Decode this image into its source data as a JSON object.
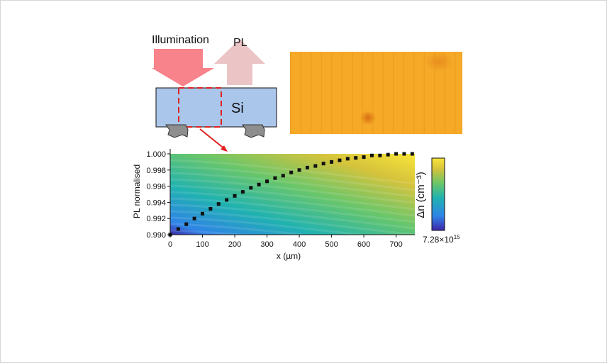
{
  "labels": {
    "illumination": "Illumination",
    "pl": "PL",
    "si": "Si"
  },
  "colors": {
    "illumination_arrow": "#f8838a",
    "pl_arrow": "#ebc4c6",
    "silicon": "#aac6ea",
    "dashed_box": "#e02020",
    "contact": "#8e8e8e",
    "pl_image_base": "#f5a927",
    "data_points": "#111111"
  },
  "chart_data": {
    "type": "scatter",
    "xlabel": "x (µm)",
    "ylabel": "PL normalised",
    "xlim": [
      0,
      780
    ],
    "ylim": [
      0.99,
      1.0
    ],
    "x_ticks": [
      "0",
      "100",
      "200",
      "300",
      "400",
      "500",
      "600",
      "700"
    ],
    "y_ticks": [
      "0.990",
      "0.992",
      "0.994",
      "0.996",
      "0.998",
      "1.000"
    ],
    "series": [
      {
        "x": [
          0,
          25,
          50,
          75,
          100,
          125,
          150,
          175,
          200,
          225,
          250,
          275,
          300,
          325,
          350,
          375,
          400,
          425,
          450,
          475,
          500,
          525,
          550,
          575,
          600,
          625,
          650,
          675,
          700,
          725,
          750
        ],
        "y": [
          0.99,
          0.9907,
          0.9913,
          0.992,
          0.9926,
          0.9932,
          0.9938,
          0.9943,
          0.9948,
          0.9953,
          0.9958,
          0.9962,
          0.9966,
          0.997,
          0.9973,
          0.9977,
          0.998,
          0.9983,
          0.9985,
          0.9988,
          0.999,
          0.9992,
          0.9994,
          0.9995,
          0.9996,
          0.9998,
          0.9998,
          0.9999,
          1.0,
          1.0,
          1.0
        ]
      }
    ],
    "colorbar": {
      "label": "Δn (cm⁻³)",
      "min_label": "7.28×10",
      "min_label_exponent": "15",
      "colors": [
        "#3d26a8",
        "#2f84e6",
        "#20b2b0",
        "#69c66a",
        "#d5c33c",
        "#f9e53a"
      ]
    }
  }
}
